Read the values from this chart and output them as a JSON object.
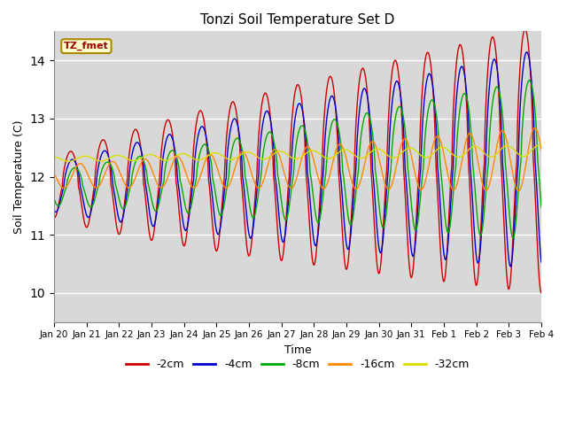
{
  "title": "Tonzi Soil Temperature Set D",
  "xlabel": "Time",
  "ylabel": "Soil Temperature (C)",
  "ylim": [
    9.5,
    14.5
  ],
  "annotation": "TZ_fmet",
  "bg_color": "#d8d8d8",
  "series_colors": [
    "#cc0000",
    "#0000cc",
    "#00aa00",
    "#ff8800",
    "#dddd00"
  ],
  "series_labels": [
    "-2cm",
    "-4cm",
    "-8cm",
    "-16cm",
    "-32cm"
  ],
  "xtick_labels": [
    "Jan 20",
    "Jan 21",
    "Jan 22",
    "Jan 23",
    "Jan 24",
    "Jan 25",
    "Jan 26",
    "Jan 27",
    "Jan 28",
    "Jan 29",
    "Jan 30",
    "Jan 31",
    "Feb 1",
    "Feb 2",
    "Feb 3",
    "Feb 4"
  ]
}
